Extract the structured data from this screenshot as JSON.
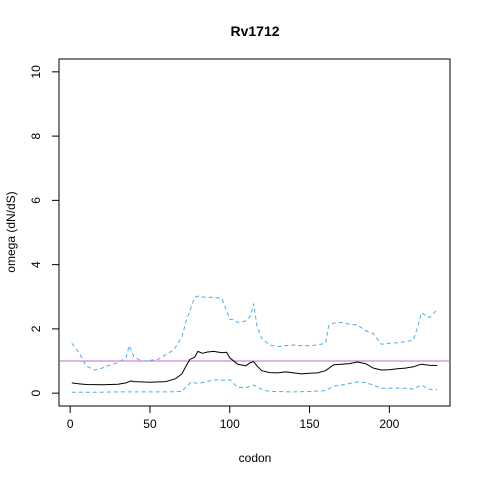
{
  "chart_data": {
    "type": "line",
    "title": "Rv1712",
    "xlabel": "codon",
    "ylabel": "omega (dN/dS)",
    "xlim": [
      -7,
      238
    ],
    "ylim": [
      -0.4,
      10.4
    ],
    "xticks": [
      0,
      50,
      100,
      150,
      200
    ],
    "yticks": [
      0,
      2,
      4,
      6,
      8,
      10
    ],
    "reference_line": {
      "y": 1,
      "color": "#cc66cc"
    },
    "grid": false,
    "series": [
      {
        "style": "solid",
        "color": "#000000",
        "x": [
          1,
          5,
          10,
          20,
          30,
          35,
          38,
          40,
          50,
          60,
          66,
          70,
          73,
          75,
          78,
          80,
          83,
          86,
          90,
          95,
          98,
          100,
          105,
          110,
          113,
          115,
          117,
          120,
          125,
          130,
          135,
          140,
          145,
          150,
          155,
          160,
          165,
          170,
          175,
          180,
          185,
          190,
          195,
          200,
          205,
          210,
          215,
          220,
          225,
          230
        ],
        "y": [
          0.32,
          0.29,
          0.27,
          0.26,
          0.28,
          0.32,
          0.38,
          0.36,
          0.34,
          0.36,
          0.45,
          0.6,
          0.88,
          1.05,
          1.12,
          1.3,
          1.24,
          1.28,
          1.3,
          1.26,
          1.27,
          1.1,
          0.9,
          0.85,
          0.95,
          0.98,
          0.85,
          0.7,
          0.64,
          0.63,
          0.66,
          0.63,
          0.6,
          0.62,
          0.63,
          0.7,
          0.88,
          0.9,
          0.92,
          0.97,
          0.92,
          0.78,
          0.72,
          0.73,
          0.76,
          0.78,
          0.82,
          0.9,
          0.87,
          0.86
        ]
      },
      {
        "style": "dashed",
        "color": "#4ab0e8",
        "x": [
          1,
          5,
          10,
          15,
          20,
          25,
          30,
          35,
          37,
          40,
          45,
          50,
          55,
          60,
          65,
          70,
          73,
          76,
          78,
          80,
          85,
          90,
          95,
          100,
          103,
          105,
          110,
          113,
          115,
          117,
          120,
          125,
          130,
          135,
          140,
          145,
          150,
          155,
          160,
          162,
          165,
          170,
          175,
          180,
          185,
          190,
          195,
          200,
          205,
          210,
          215,
          218,
          220,
          225,
          230
        ],
        "y": [
          1.55,
          1.3,
          0.85,
          0.72,
          0.78,
          0.88,
          0.95,
          1.1,
          1.48,
          1.12,
          1.0,
          1.02,
          1.05,
          1.2,
          1.35,
          1.75,
          2.3,
          2.7,
          2.98,
          3.02,
          2.98,
          2.98,
          2.95,
          2.3,
          2.28,
          2.2,
          2.25,
          2.4,
          2.78,
          2.1,
          1.7,
          1.5,
          1.45,
          1.48,
          1.5,
          1.48,
          1.48,
          1.5,
          1.55,
          2.1,
          2.18,
          2.2,
          2.15,
          2.12,
          1.95,
          1.85,
          1.52,
          1.55,
          1.57,
          1.6,
          1.65,
          2.1,
          2.5,
          2.35,
          2.6
        ]
      },
      {
        "style": "dashed",
        "color": "#4ab0e8",
        "x": [
          1,
          10,
          20,
          30,
          40,
          50,
          60,
          70,
          73,
          76,
          80,
          85,
          90,
          95,
          100,
          105,
          110,
          115,
          120,
          125,
          130,
          140,
          150,
          160,
          165,
          170,
          175,
          180,
          185,
          190,
          195,
          200,
          205,
          210,
          215,
          220,
          225,
          230
        ],
        "y": [
          0.03,
          0.03,
          0.03,
          0.04,
          0.04,
          0.04,
          0.04,
          0.05,
          0.22,
          0.35,
          0.3,
          0.35,
          0.42,
          0.4,
          0.42,
          0.18,
          0.17,
          0.25,
          0.12,
          0.05,
          0.05,
          0.04,
          0.05,
          0.08,
          0.22,
          0.25,
          0.3,
          0.35,
          0.33,
          0.25,
          0.15,
          0.15,
          0.16,
          0.15,
          0.13,
          0.25,
          0.12,
          0.1
        ]
      }
    ]
  }
}
